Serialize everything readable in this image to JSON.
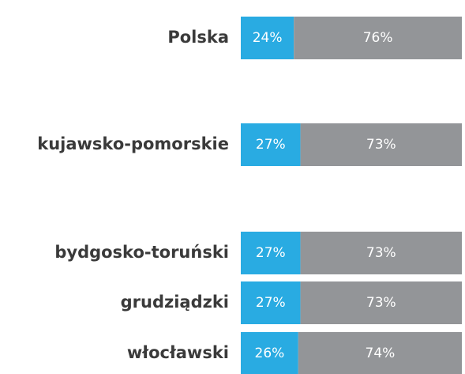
{
  "chart_data": {
    "type": "stacked-barh",
    "categories": [
      "Polska",
      "kujawsko-pomorskie",
      "bydgosko-toruński",
      "grudziądzki",
      "włocławski"
    ],
    "series": [
      {
        "color": "#29abe2",
        "values": [
          24,
          27,
          27,
          27,
          26
        ],
        "value_labels": [
          "24%",
          "27%",
          "27%",
          "27%",
          "26%"
        ]
      },
      {
        "color": "#939598",
        "values": [
          76,
          73,
          73,
          73,
          74
        ],
        "value_labels": [
          "76%",
          "73%",
          "73%",
          "73%",
          "74%"
        ]
      }
    ]
  }
}
